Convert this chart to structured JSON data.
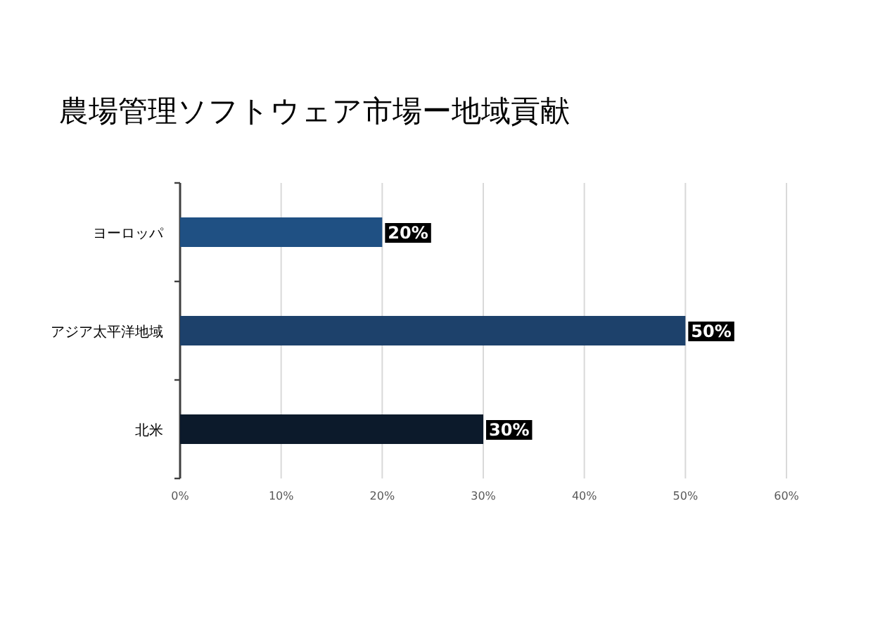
{
  "chart_data": {
    "type": "bar",
    "orientation": "horizontal",
    "title": "農場管理ソフトウェア市場ー地域貢献",
    "categories": [
      "ヨーロッパ",
      "アジア太平洋地域",
      "北米"
    ],
    "values": [
      20,
      50,
      30
    ],
    "colors": [
      "#1f5083",
      "#1d416b",
      "#0c1a2b"
    ],
    "value_labels": [
      "20%",
      "50%",
      "30%"
    ],
    "xlim": [
      0,
      60
    ],
    "xticks": [
      {
        "value": 0,
        "label": "0%"
      },
      {
        "value": 10,
        "label": "10%"
      },
      {
        "value": 20,
        "label": "20%"
      },
      {
        "value": 30,
        "label": "30%"
      },
      {
        "value": 40,
        "label": "40%"
      },
      {
        "value": 50,
        "label": "50%"
      },
      {
        "value": 60,
        "label": "60%"
      }
    ],
    "grid": "x"
  }
}
